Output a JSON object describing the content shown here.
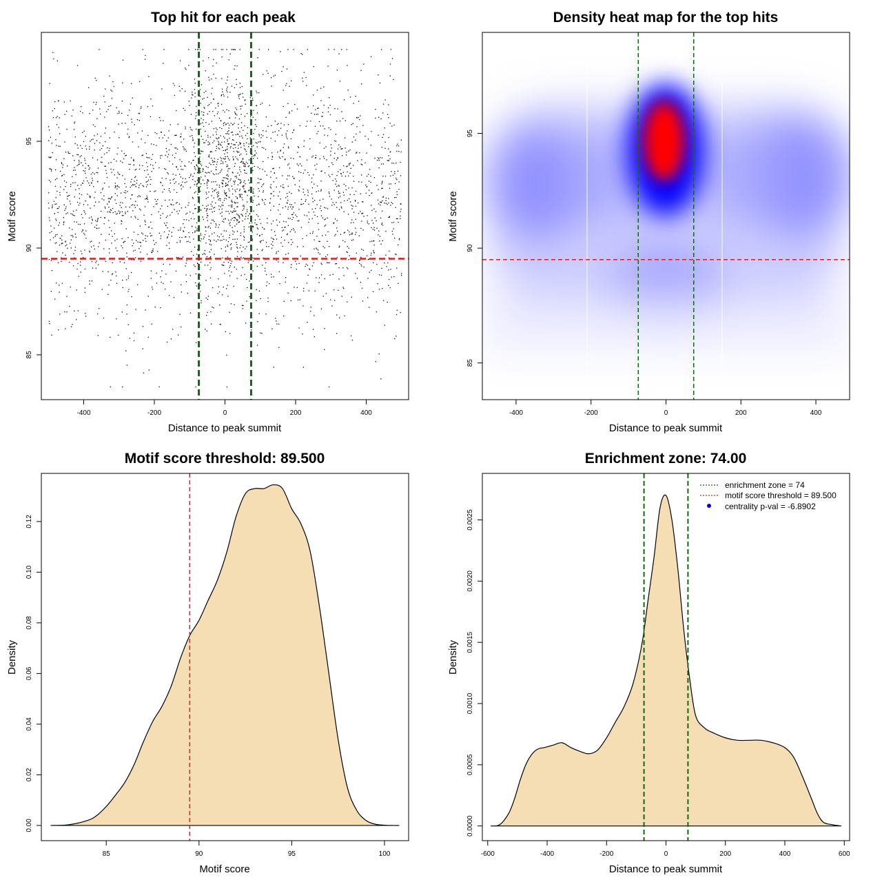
{
  "colors": {
    "points": "#000000",
    "threshold_line": "#e01b1b",
    "zone_line": "#0b6b0b",
    "density_fill": "#f5deb3",
    "heat_low": "#ffffff",
    "heat_mid": "#0000ff",
    "heat_high": "#ff0000"
  },
  "chart_data": [
    {
      "id": "scatter",
      "type": "scatter",
      "title": "Top hit for each peak",
      "xlabel": "Distance to peak summit",
      "ylabel": "Motif score",
      "xlim": [
        -520,
        520
      ],
      "ylim": [
        82.9,
        100.1
      ],
      "xticks": [
        -400,
        -200,
        0,
        200,
        400
      ],
      "yticks": [
        85,
        90,
        95
      ],
      "grid": false,
      "vlines": [
        -74,
        74
      ],
      "hline": 89.5,
      "point_summary": {
        "n_points": 3000,
        "x_range": [
          -500,
          500
        ],
        "y_range": [
          83.5,
          99.3
        ],
        "background_score_mean": 92.3,
        "background_score_sd": 2.9,
        "central_fraction": 0.17,
        "central_x_sd": 50,
        "central_score_mean": 94.0,
        "central_score_sd": 2.6
      }
    },
    {
      "id": "heatmap",
      "type": "heatmap",
      "title": "Density heat map for the top hits",
      "xlabel": "Distance to peak summit",
      "ylabel": "Motif score",
      "xlim": [
        -490,
        490
      ],
      "ylim": [
        83.4,
        99.4
      ],
      "xticks": [
        -400,
        -200,
        0,
        200,
        400
      ],
      "yticks": [
        85,
        90,
        95
      ],
      "vlines": [
        -74,
        74
      ],
      "hline": 89.5,
      "color_scale": [
        "white",
        "blue",
        "red"
      ],
      "hot_spot": {
        "x": 0,
        "y": 95
      },
      "secondary_regions": [
        {
          "x": -400,
          "y": 93
        },
        {
          "x": 400,
          "y": 93
        },
        {
          "x": 0,
          "y": 87.5
        }
      ]
    },
    {
      "id": "score_density",
      "type": "area",
      "title": "Motif score threshold: 89.500",
      "xlabel": "Motif score",
      "ylabel": "Density",
      "xlim": [
        81.5,
        101.3
      ],
      "ylim": [
        -0.006,
        0.139
      ],
      "xticks": [
        85,
        90,
        95,
        100
      ],
      "yticks": [
        0.0,
        0.02,
        0.04,
        0.06,
        0.08,
        0.1,
        0.12
      ],
      "ytick_labels": [
        "0.00",
        "0.02",
        "0.04",
        "0.06",
        "0.08",
        "0.10",
        "0.12"
      ],
      "vline": 89.5,
      "x": [
        82.0,
        83.0,
        84.0,
        84.5,
        85.0,
        85.5,
        86.0,
        86.5,
        87.0,
        87.5,
        88.0,
        88.5,
        89.0,
        89.5,
        90.0,
        90.5,
        91.0,
        91.5,
        92.0,
        92.5,
        93.0,
        93.5,
        94.0,
        94.5,
        95.0,
        95.5,
        96.0,
        96.5,
        97.0,
        97.5,
        98.0,
        98.5,
        99.0,
        99.5,
        100.0,
        100.5,
        100.8
      ],
      "values": [
        0.0,
        0.0003,
        0.002,
        0.004,
        0.0075,
        0.012,
        0.017,
        0.024,
        0.033,
        0.041,
        0.047,
        0.055,
        0.066,
        0.075,
        0.081,
        0.089,
        0.097,
        0.108,
        0.122,
        0.131,
        0.133,
        0.133,
        0.1345,
        0.133,
        0.125,
        0.119,
        0.108,
        0.086,
        0.06,
        0.034,
        0.015,
        0.006,
        0.002,
        0.0005,
        0.0001,
        0.0,
        0.0
      ]
    },
    {
      "id": "distance_density",
      "type": "area",
      "title": "Enrichment zone: 74.00",
      "xlabel": "Distance to peak summit",
      "ylabel": "Density",
      "xlim": [
        -618,
        618
      ],
      "ylim": [
        -0.00012,
        0.00288
      ],
      "xticks": [
        -600,
        -400,
        -200,
        0,
        200,
        400,
        600
      ],
      "yticks": [
        0.0,
        0.0005,
        0.001,
        0.0015,
        0.002,
        0.0025
      ],
      "ytick_labels": [
        "0.0000",
        "0.0005",
        "0.0010",
        "0.0015",
        "0.0020",
        "0.0025"
      ],
      "vlines": [
        -74,
        74
      ],
      "x": [
        -590,
        -560,
        -530,
        -510,
        -490,
        -470,
        -450,
        -430,
        -410,
        -380,
        -350,
        -320,
        -290,
        -260,
        -230,
        -200,
        -170,
        -140,
        -110,
        -80,
        -60,
        -40,
        -20,
        0,
        20,
        40,
        60,
        80,
        100,
        130,
        160,
        200,
        240,
        280,
        320,
        360,
        400,
        430,
        460,
        490,
        510,
        530,
        560,
        590
      ],
      "values": [
        0.0,
        1e-05,
        0.0001,
        0.00022,
        0.00038,
        0.00051,
        0.00059,
        0.00063,
        0.00064,
        0.00066,
        0.00068,
        0.00064,
        0.00061,
        0.00059,
        0.00062,
        0.00072,
        0.00085,
        0.00098,
        0.00117,
        0.0015,
        0.00185,
        0.0022,
        0.0026,
        0.0027,
        0.0025,
        0.0021,
        0.0016,
        0.0012,
        0.0009,
        0.0008,
        0.00076,
        0.00072,
        0.0007,
        0.0007,
        0.0007,
        0.00068,
        0.00064,
        0.00056,
        0.0004,
        0.00022,
        0.0001,
        3e-05,
        1e-05,
        0.0
      ]
    }
  ],
  "legend": {
    "placement": "top-right",
    "items": [
      {
        "label": "enrichment zone = 74",
        "type": "line",
        "color": "#0b6b0b"
      },
      {
        "label": "motif score threshold = 89.500",
        "type": "line",
        "color": "#e01b1b"
      },
      {
        "label": "centrality p-val = -6.8902",
        "type": "point",
        "color": "#0000ff"
      }
    ]
  }
}
